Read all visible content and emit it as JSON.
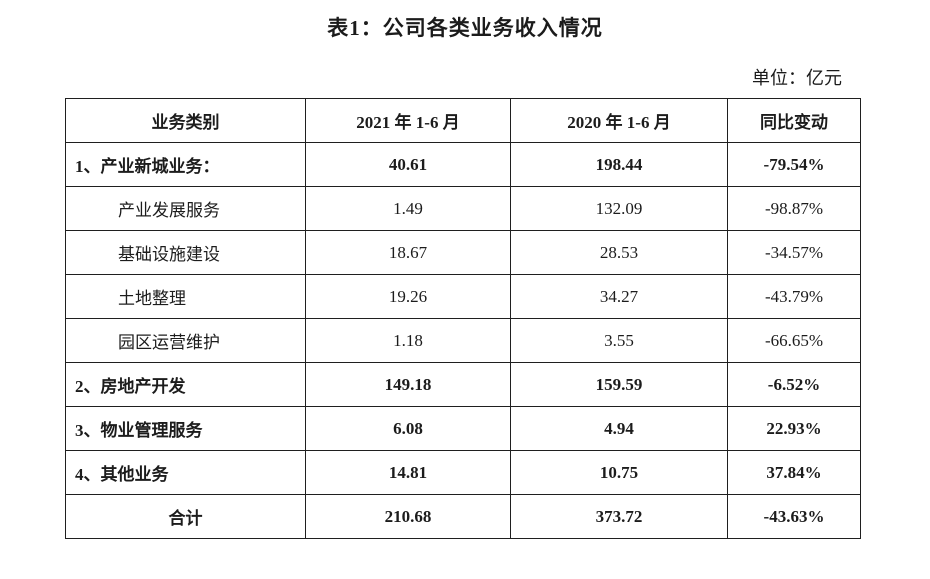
{
  "document": {
    "title": "表1：公司各类业务收入情况",
    "unit_label": "单位：亿元"
  },
  "table": {
    "columns": [
      "业务类别",
      "2021 年 1-6 月",
      "2020 年 1-6 月",
      "同比变动"
    ],
    "rows": [
      {
        "label": "1、产业新城业务：",
        "v2021": "40.61",
        "v2020": "198.44",
        "yoy": "-79.54%",
        "style": "section"
      },
      {
        "label": "产业发展服务",
        "v2021": "1.49",
        "v2020": "132.09",
        "yoy": "-98.87%",
        "style": "sub"
      },
      {
        "label": "基础设施建设",
        "v2021": "18.67",
        "v2020": "28.53",
        "yoy": "-34.57%",
        "style": "sub"
      },
      {
        "label": "土地整理",
        "v2021": "19.26",
        "v2020": "34.27",
        "yoy": "-43.79%",
        "style": "sub"
      },
      {
        "label": "园区运营维护",
        "v2021": "1.18",
        "v2020": "3.55",
        "yoy": "-66.65%",
        "style": "sub"
      },
      {
        "label": "2、房地产开发",
        "v2021": "149.18",
        "v2020": "159.59",
        "yoy": "-6.52%",
        "style": "section"
      },
      {
        "label": "3、物业管理服务",
        "v2021": "6.08",
        "v2020": "4.94",
        "yoy": "22.93%",
        "style": "section"
      },
      {
        "label": "4、其他业务",
        "v2021": "14.81",
        "v2020": "10.75",
        "yoy": "37.84%",
        "style": "section"
      },
      {
        "label": "合计",
        "v2021": "210.68",
        "v2020": "373.72",
        "yoy": "-43.63%",
        "style": "total"
      }
    ]
  }
}
